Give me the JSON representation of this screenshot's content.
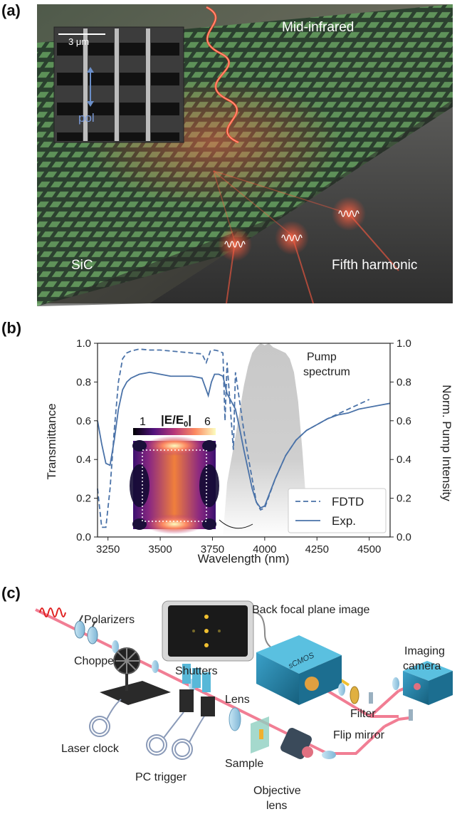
{
  "panel_a": {
    "label": "(a)",
    "scale_bar": "3 μm",
    "pol": "pol",
    "midir": "Mid-infrared",
    "sic": "SiC",
    "fifth": "Fifth harmonic"
  },
  "panel_b": {
    "label": "(b)",
    "pump_label_1": "Pump",
    "pump_label_2": "spectrum",
    "colorbar_title": "|E/E",
    "colorbar_sub": "0",
    "colorbar_close": "|",
    "colorbar_min": "1",
    "colorbar_max": "6"
  },
  "panel_c": {
    "label": "(c)",
    "polarizers": "Polarizers",
    "back_focal": "Back focal plane image",
    "chopper": "Chopper",
    "shutters": "Shutters",
    "lens": "Lens",
    "laser_clock": "Laser clock",
    "pc_trigger": "PC trigger",
    "sample": "Sample",
    "objective_1": "Objective",
    "objective_2": "lens",
    "filter": "Filter",
    "flip_mirror": "Flip mirror",
    "imaging_1": "Imaging",
    "imaging_2": "camera",
    "scmos": "sCMOS"
  },
  "chart_data": {
    "type": "line",
    "xlabel": "Wavelength (nm)",
    "ylabel": "Transmittance",
    "y2label": "Norm. Pump Intensity",
    "xlim": [
      3200,
      4600
    ],
    "ylim": [
      0,
      1
    ],
    "y2lim": [
      0,
      1
    ],
    "xticks": [
      "3250",
      "3500",
      "3750",
      "4000",
      "4250",
      "4500"
    ],
    "yticks": [
      "0.0",
      "0.2",
      "0.4",
      "0.6",
      "0.8",
      "1.0"
    ],
    "y2ticks": [
      "0.0",
      "0.2",
      "0.4",
      "0.6",
      "0.8",
      "1.0"
    ],
    "legend_position": "lower-right",
    "series": [
      {
        "name": "FDTD",
        "style": "dashed",
        "x": [
          3200,
          3220,
          3240,
          3260,
          3280,
          3300,
          3320,
          3340,
          3360,
          3380,
          3400,
          3450,
          3500,
          3550,
          3600,
          3650,
          3700,
          3720,
          3730,
          3740,
          3760,
          3780,
          3800,
          3810,
          3820,
          3840,
          3850,
          3860,
          3880,
          3900,
          3920,
          3940,
          3960,
          3980,
          4000,
          4050,
          4100,
          4150,
          4200,
          4250,
          4300,
          4400,
          4500
        ],
        "y": [
          0.25,
          0.05,
          0.05,
          0.25,
          0.55,
          0.8,
          0.92,
          0.95,
          0.96,
          0.965,
          0.97,
          0.965,
          0.965,
          0.96,
          0.955,
          0.95,
          0.945,
          0.9,
          0.93,
          0.96,
          0.965,
          0.96,
          0.95,
          0.6,
          0.9,
          0.6,
          0.45,
          0.85,
          0.7,
          0.55,
          0.42,
          0.3,
          0.18,
          0.14,
          0.15,
          0.3,
          0.42,
          0.5,
          0.55,
          0.58,
          0.61,
          0.66,
          0.71
        ]
      },
      {
        "name": "Exp.",
        "style": "solid",
        "x": [
          3200,
          3220,
          3240,
          3260,
          3280,
          3300,
          3320,
          3340,
          3360,
          3380,
          3400,
          3450,
          3500,
          3550,
          3600,
          3650,
          3700,
          3720,
          3730,
          3745,
          3760,
          3780,
          3800,
          3820,
          3840,
          3860,
          3880,
          3900,
          3920,
          3940,
          3960,
          3980,
          4000,
          4050,
          4100,
          4150,
          4200,
          4250,
          4300,
          4350,
          4400,
          4450,
          4500,
          4550,
          4600
        ],
        "y": [
          0.6,
          0.48,
          0.38,
          0.37,
          0.5,
          0.66,
          0.76,
          0.8,
          0.82,
          0.83,
          0.84,
          0.85,
          0.84,
          0.83,
          0.83,
          0.83,
          0.82,
          0.76,
          0.73,
          0.8,
          0.84,
          0.84,
          0.83,
          0.74,
          0.7,
          0.66,
          0.56,
          0.45,
          0.35,
          0.25,
          0.18,
          0.15,
          0.16,
          0.3,
          0.42,
          0.5,
          0.55,
          0.58,
          0.61,
          0.63,
          0.64,
          0.66,
          0.67,
          0.68,
          0.69
        ]
      },
      {
        "name": "Pump spectrum",
        "style": "filled-gray",
        "x": [
          3800,
          3820,
          3840,
          3860,
          3880,
          3900,
          3920,
          3940,
          3960,
          3980,
          4000,
          4020,
          4040,
          4060,
          4080,
          4100,
          4120,
          4140,
          4160,
          4180,
          4200,
          4210
        ],
        "y": [
          0.0,
          0.28,
          0.4,
          0.52,
          0.65,
          0.78,
          0.88,
          0.95,
          0.98,
          1.0,
          0.99,
          1.0,
          0.98,
          0.97,
          0.96,
          0.95,
          0.92,
          0.85,
          0.7,
          0.45,
          0.15,
          0.0
        ]
      }
    ]
  }
}
